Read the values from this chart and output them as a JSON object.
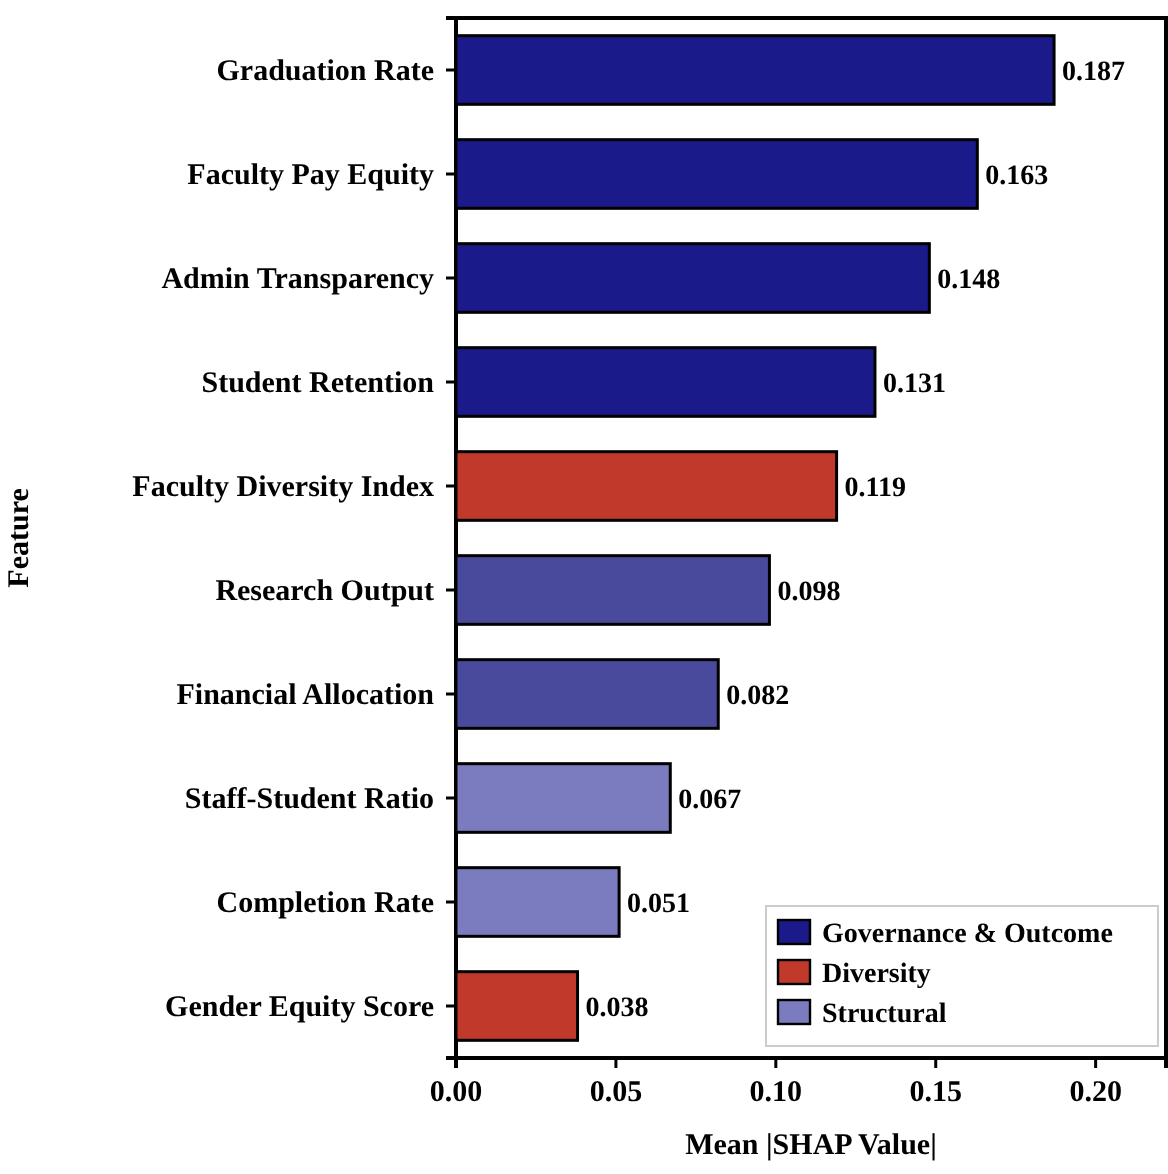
{
  "chart_data": {
    "type": "bar",
    "orientation": "horizontal",
    "xlabel": "Mean |SHAP Value|",
    "ylabel": "Feature",
    "categories": [
      "Graduation Rate",
      "Faculty Pay Equity",
      "Admin Transparency",
      "Student Retention",
      "Faculty Diversity Index",
      "Research Output",
      "Financial Allocation",
      "Staff-Student Ratio",
      "Completion Rate",
      "Gender Equity Score"
    ],
    "series": [
      {
        "name": "Governance & Outcome",
        "color": "#1a1a8a",
        "colors": [
          "#1a1a8a",
          "#1a1a8a",
          "#1a1a8a",
          "#1a1a8a",
          null,
          "#4a4a9c",
          "#4a4a9c",
          null,
          null,
          null
        ],
        "values": [
          0.187,
          0.163,
          0.148,
          0.131,
          null,
          0.098,
          0.082,
          null,
          null,
          null
        ]
      },
      {
        "name": "Diversity",
        "color": "#c0392b",
        "values": [
          null,
          null,
          null,
          null,
          0.119,
          null,
          null,
          null,
          null,
          0.038
        ]
      },
      {
        "name": "Structural",
        "color": "#7b7bc0",
        "values": [
          null,
          null,
          null,
          null,
          null,
          null,
          null,
          0.067,
          0.051,
          null
        ]
      }
    ],
    "xlim": [
      0,
      0.222
    ],
    "xticks": [
      {
        "value": 0,
        "label": "0.00"
      },
      {
        "value": 0.05,
        "label": "0.05"
      },
      {
        "value": 0.1,
        "label": "0.10"
      },
      {
        "value": 0.15,
        "label": "0.15"
      },
      {
        "value": 0.2,
        "label": "0.20"
      }
    ],
    "data_labels": true,
    "legend": "bottom right"
  }
}
